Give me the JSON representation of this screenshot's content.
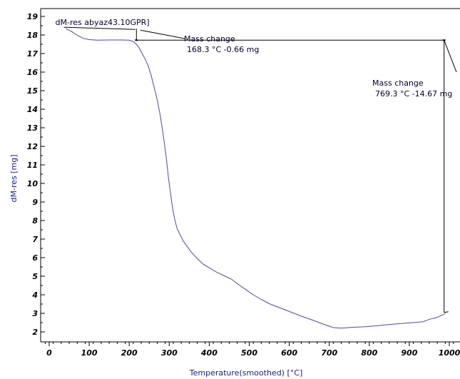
{
  "chart_data": {
    "type": "line",
    "title": "",
    "xlabel": "Temperature(smoothed)  [°C]",
    "ylabel": "dM-res  [mg]",
    "xlim": [
      -10,
      1020
    ],
    "ylim": [
      1.7,
      19.2
    ],
    "x_ticks": [
      "0",
      "100",
      "200",
      "300",
      "400",
      "500",
      "600",
      "700",
      "800",
      "900",
      "1000"
    ],
    "y_ticks": [
      "2",
      "3",
      "4",
      "5",
      "6",
      "7",
      "8",
      "9",
      "10",
      "11",
      "12",
      "13",
      "14",
      "15",
      "16",
      "17",
      "18",
      "19"
    ],
    "grid": false,
    "series": [
      {
        "name": "dM-res abyaz43.10GPR]",
        "color": "#4a4aa8",
        "x": [
          42,
          55,
          70,
          85,
          100,
          120,
          150,
          180,
          200,
          210,
          218,
          225,
          232,
          240,
          248,
          255,
          262,
          270,
          278,
          285,
          292,
          298,
          305,
          310,
          315,
          320,
          328,
          335,
          345,
          355,
          370,
          385,
          400,
          420,
          440,
          455,
          470,
          490,
          510,
          530,
          550,
          570,
          600,
          630,
          660,
          690,
          710,
          730,
          760,
          790,
          820,
          850,
          880,
          910,
          935,
          950,
          965,
          980,
          990
        ],
        "y": [
          18.34,
          18.2,
          17.98,
          17.82,
          17.75,
          17.72,
          17.73,
          17.73,
          17.72,
          17.65,
          17.5,
          17.3,
          17.0,
          16.7,
          16.3,
          15.8,
          15.2,
          14.5,
          13.6,
          12.6,
          11.5,
          10.3,
          9.2,
          8.45,
          7.95,
          7.55,
          7.2,
          6.9,
          6.6,
          6.3,
          5.95,
          5.65,
          5.45,
          5.2,
          5.0,
          4.85,
          4.6,
          4.3,
          4.0,
          3.75,
          3.52,
          3.35,
          3.1,
          2.85,
          2.62,
          2.38,
          2.23,
          2.2,
          2.25,
          2.28,
          2.33,
          2.4,
          2.45,
          2.5,
          2.55,
          2.68,
          2.75,
          2.88,
          3.0
        ]
      }
    ],
    "markers": [
      {
        "label": "Mass change",
        "value": "168.3 °C  -0.66 mg",
        "x_top": 218,
        "y_top": 17.72,
        "x_ref": 218,
        "y_ref": 18.34
      },
      {
        "label": "Mass change",
        "value": "769.3 °C  -14.67 mg",
        "x_top": 987,
        "y_top": 17.72,
        "x_ref": 987,
        "y_ref": 3.05
      }
    ]
  }
}
